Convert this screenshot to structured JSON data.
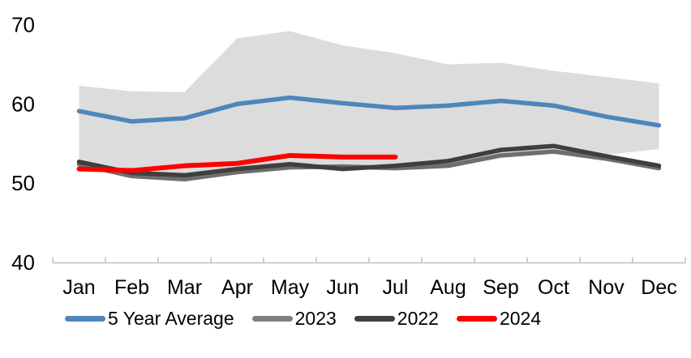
{
  "chart_data": {
    "type": "line",
    "categories": [
      "Jan",
      "Feb",
      "Mar",
      "Apr",
      "May",
      "Jun",
      "Jul",
      "Aug",
      "Sep",
      "Oct",
      "Nov",
      "Dec"
    ],
    "yticks": [
      40,
      50,
      60,
      70
    ],
    "ylim": [
      40,
      70
    ],
    "grid": false,
    "legend_position": "bottom",
    "axis_color": "#BFBFBF",
    "text_color": "#000000",
    "band": {
      "name": "5-year-range",
      "color": "#DCDCDC",
      "top": [
        62.3,
        61.6,
        61.5,
        68.3,
        69.2,
        67.4,
        66.4,
        65.0,
        65.2,
        64.2,
        63.4,
        62.6
      ],
      "bottom": [
        51.9,
        50.8,
        50.4,
        51.3,
        51.9,
        51.6,
        51.8,
        52.4,
        53.4,
        53.9,
        53.6,
        54.3
      ]
    },
    "series": [
      {
        "name": "5 Year Average",
        "color": "#4E86BB",
        "width": 5.5,
        "values": [
          59.1,
          57.8,
          58.2,
          60.0,
          60.8,
          60.1,
          59.5,
          59.8,
          60.4,
          59.8,
          58.4,
          57.3
        ]
      },
      {
        "name": "2023",
        "color": "#6E6E6E",
        "width": 5.5,
        "values": [
          52.4,
          50.9,
          50.5,
          51.4,
          52.0,
          52.1,
          51.9,
          52.2,
          53.5,
          54.0,
          53.1,
          51.9
        ]
      },
      {
        "name": "2022",
        "color": "#3F3F3F",
        "width": 5.5,
        "values": [
          52.7,
          51.3,
          51.0,
          51.8,
          52.4,
          51.8,
          52.2,
          52.8,
          54.2,
          54.7,
          53.4,
          52.2
        ]
      },
      {
        "name": "2024",
        "color": "#FF0000",
        "width": 6,
        "values": [
          51.8,
          51.6,
          52.2,
          52.5,
          53.5,
          53.3,
          53.3,
          null,
          null,
          null,
          null,
          null
        ]
      }
    ]
  },
  "legend": {
    "items": [
      {
        "label": "5 Year Average",
        "color": "#4E86BB"
      },
      {
        "label": "2023",
        "color": "#7F7F7F"
      },
      {
        "label": "2022",
        "color": "#404040"
      },
      {
        "label": "2024",
        "color": "#FF0000"
      }
    ]
  }
}
